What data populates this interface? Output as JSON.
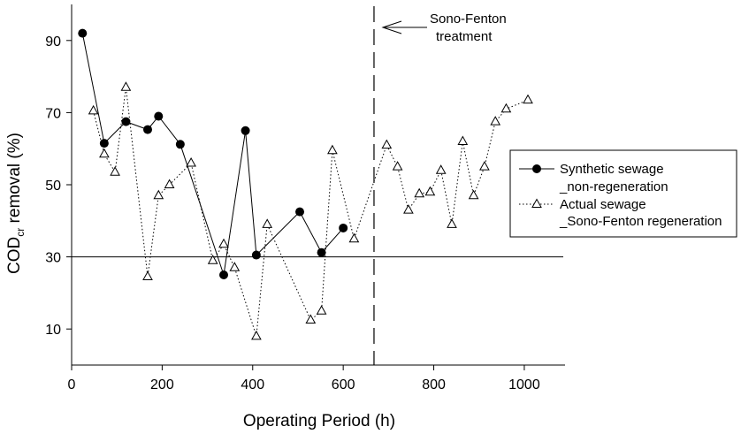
{
  "chart_data": {
    "type": "line",
    "xlabel": "Operating Period (h)",
    "ylabel": "COD",
    "ylabel_subscript": "cr",
    "ylabel_suffix": " removal (%)",
    "xlim": [
      0,
      1090
    ],
    "ylim": [
      0,
      100
    ],
    "xticks": [
      0,
      200,
      400,
      600,
      800,
      1000
    ],
    "yticks": [
      10,
      30,
      50,
      70,
      90
    ],
    "grid": false,
    "legend_position": "right",
    "reference_line_y": 30,
    "vertical_line_x": 668,
    "annotation": {
      "line1": "Sono-Fenton",
      "line2": "treatment"
    },
    "series": [
      {
        "name": "Synthetic sewage _non-regeneration",
        "legend_line1": "Synthetic sewage",
        "legend_line2": "_non-regeneration",
        "marker": "filled-circle",
        "line_style": "solid",
        "x": [
          24,
          72,
          120,
          168,
          192,
          240,
          336,
          384,
          408,
          504,
          552,
          600
        ],
        "y": [
          92,
          61.5,
          67.5,
          65.3,
          69,
          61.2,
          25,
          65,
          30.5,
          42.5,
          31.2,
          38
        ]
      },
      {
        "name": "Actual sewage _Sono-Fenton regeneration",
        "legend_line1": "Actual sewage",
        "legend_line2": "_Sono-Fenton regeneration",
        "marker": "open-triangle",
        "line_style": "dotted",
        "x": [
          48,
          72,
          96,
          120,
          168,
          192,
          216,
          264,
          312,
          336,
          360,
          408,
          432,
          528,
          552,
          576,
          624,
          696,
          720,
          744,
          768,
          792,
          816,
          840,
          864,
          888,
          912,
          936,
          960,
          1008
        ],
        "y": [
          70.5,
          58.5,
          53.5,
          77,
          24.5,
          47,
          50,
          56,
          29,
          33.5,
          27,
          8,
          39,
          12.5,
          15,
          59.5,
          35,
          61,
          55,
          43,
          47.5,
          48,
          54,
          39,
          62,
          47,
          55,
          67.5,
          71,
          73.5
        ]
      }
    ]
  }
}
